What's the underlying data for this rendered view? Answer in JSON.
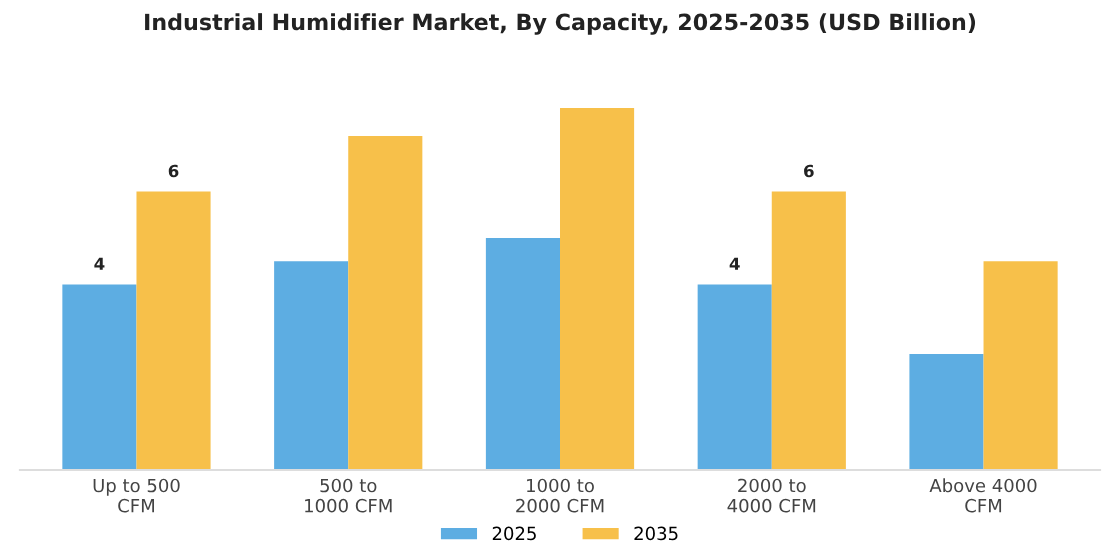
{
  "chart_data": {
    "type": "bar",
    "title": "Industrial Humidifier Market, By Capacity, 2025-2035 (USD Billion)",
    "categories": [
      "Up to 500\nCFM",
      "500 to\n1000 CFM",
      "1000 to\n2000 CFM",
      "2000 to\n4000 CFM",
      "Above 4000\nCFM"
    ],
    "series": [
      {
        "name": "2025",
        "color": "#5dade2",
        "values": [
          4,
          4.5,
          5.0,
          4,
          2.5
        ],
        "value_labels": [
          "4",
          null,
          null,
          "4",
          null
        ]
      },
      {
        "name": "2035",
        "color": "#f7c04a",
        "values": [
          6,
          7.2,
          7.8,
          6,
          4.5
        ],
        "value_labels": [
          "6",
          null,
          null,
          "6",
          null
        ]
      }
    ],
    "legend": "bottom",
    "grid": false
  }
}
